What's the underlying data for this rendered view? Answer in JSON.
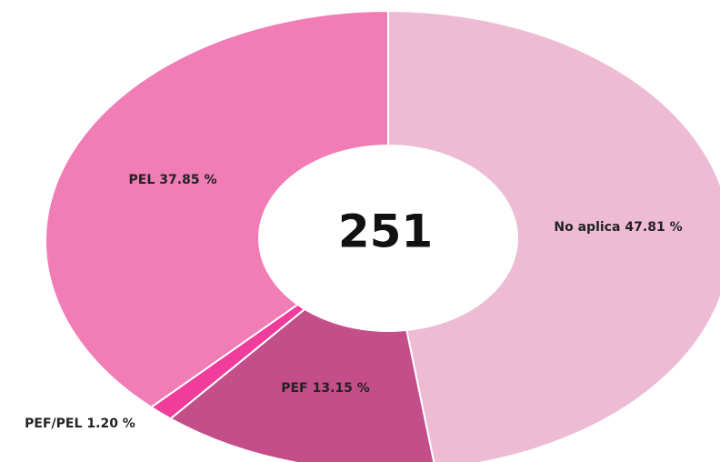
{
  "chart_data": {
    "type": "donut",
    "center_label": "251",
    "categories": [
      "No aplica",
      "PEF",
      "PEF/PEL",
      "PEL"
    ],
    "values": [
      47.81,
      13.15,
      1.2,
      37.85
    ],
    "value_labels": [
      "47.81 %",
      "13.15 %",
      "1.20 %",
      "37.85 %"
    ],
    "colors": [
      "#edbcd4",
      "#c44e8a",
      "#f03c9a",
      "#f07db5"
    ]
  }
}
